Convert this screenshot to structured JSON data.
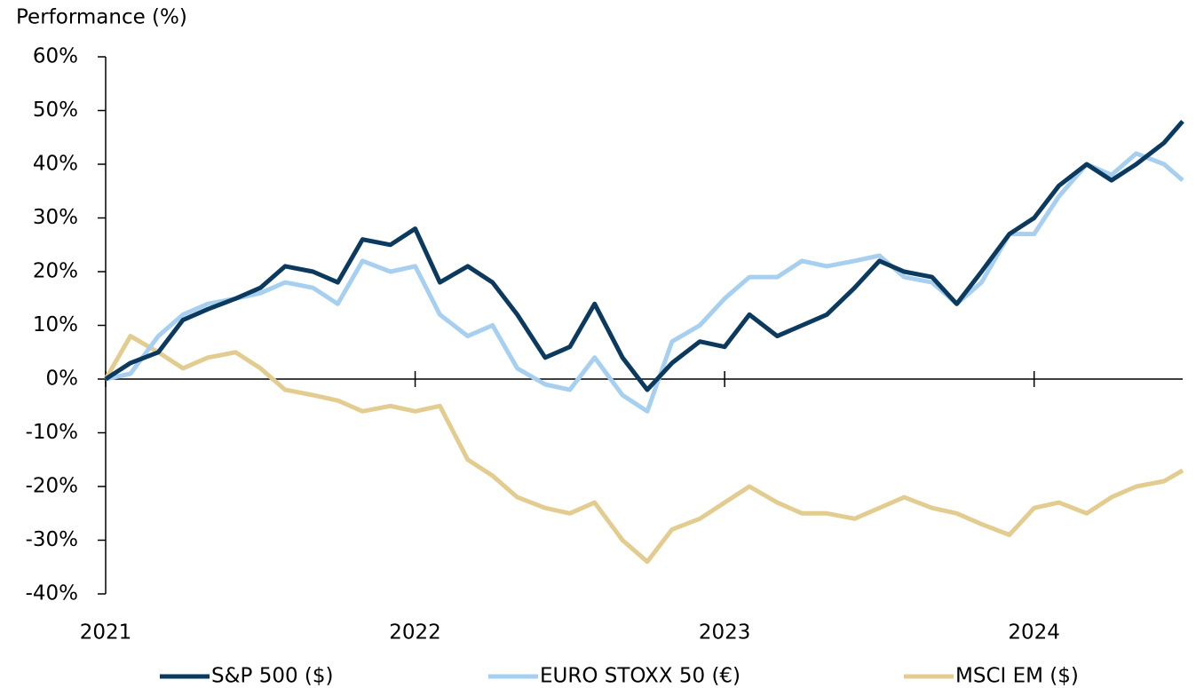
{
  "chart_data": {
    "type": "line",
    "y_label": "Performance (%)",
    "x": [
      2021,
      2021.08,
      2021.17,
      2021.25,
      2021.33,
      2021.42,
      2021.5,
      2021.58,
      2021.67,
      2021.75,
      2021.83,
      2021.92,
      2022,
      2022.08,
      2022.17,
      2022.25,
      2022.33,
      2022.42,
      2022.5,
      2022.58,
      2022.67,
      2022.75,
      2022.83,
      2022.92,
      2023,
      2023.08,
      2023.17,
      2023.25,
      2023.33,
      2023.42,
      2023.5,
      2023.58,
      2023.67,
      2023.75,
      2023.83,
      2023.92,
      2024,
      2024.08,
      2024.17,
      2024.25,
      2024.33,
      2024.42,
      2024.48
    ],
    "series": [
      {
        "name": "S&P 500 ($)",
        "color": "#0b3a5e",
        "values": [
          0,
          3,
          5,
          11,
          13,
          15,
          17,
          21,
          20,
          18,
          26,
          25,
          28,
          18,
          21,
          18,
          12,
          4,
          6,
          14,
          4,
          -2,
          3,
          7,
          6,
          12,
          8,
          10,
          12,
          17,
          22,
          20,
          19,
          14,
          20,
          27,
          30,
          36,
          40,
          37,
          40,
          44,
          48
        ]
      },
      {
        "name": "EURO STOXX 50 (€)",
        "color": "#a6cff0",
        "values": [
          0,
          1,
          8,
          12,
          14,
          15,
          16,
          18,
          17,
          14,
          22,
          20,
          21,
          12,
          8,
          10,
          2,
          -1,
          -2,
          4,
          -3,
          -6,
          7,
          10,
          15,
          19,
          19,
          22,
          21,
          22,
          23,
          19,
          18,
          14,
          18,
          27,
          27,
          34,
          40,
          38,
          42,
          40,
          37
        ]
      },
      {
        "name": "MSCI EM ($)",
        "color": "#e3cc8f",
        "values": [
          0,
          8,
          5,
          2,
          4,
          5,
          2,
          -2,
          -3,
          -4,
          -6,
          -5,
          -6,
          -5,
          -15,
          -18,
          -22,
          -24,
          -25,
          -23,
          -30,
          -34,
          -28,
          -26,
          -23,
          -20,
          -23,
          -25,
          -25,
          -26,
          -24,
          -22,
          -24,
          -25,
          -27,
          -29,
          -24,
          -23,
          -25,
          -22,
          -20,
          -19,
          -17
        ]
      }
    ],
    "xlim": [
      2021,
      2024.48
    ],
    "xticks": [
      2021,
      2022,
      2023,
      2024
    ],
    "ylim": [
      -40,
      60
    ],
    "yticks": [
      {
        "value": -40,
        "label": "-40%"
      },
      {
        "value": -30,
        "label": "-30%"
      },
      {
        "value": -20,
        "label": "-20%"
      },
      {
        "value": -10,
        "label": "-10%"
      },
      {
        "value": 0,
        "label": "0%"
      },
      {
        "value": 10,
        "label": "10%"
      },
      {
        "value": 20,
        "label": "20%"
      },
      {
        "value": 30,
        "label": "30%"
      },
      {
        "value": 40,
        "label": "40%"
      },
      {
        "value": 50,
        "label": "50%"
      },
      {
        "value": 60,
        "label": "60%"
      }
    ],
    "legend": "bottom"
  }
}
